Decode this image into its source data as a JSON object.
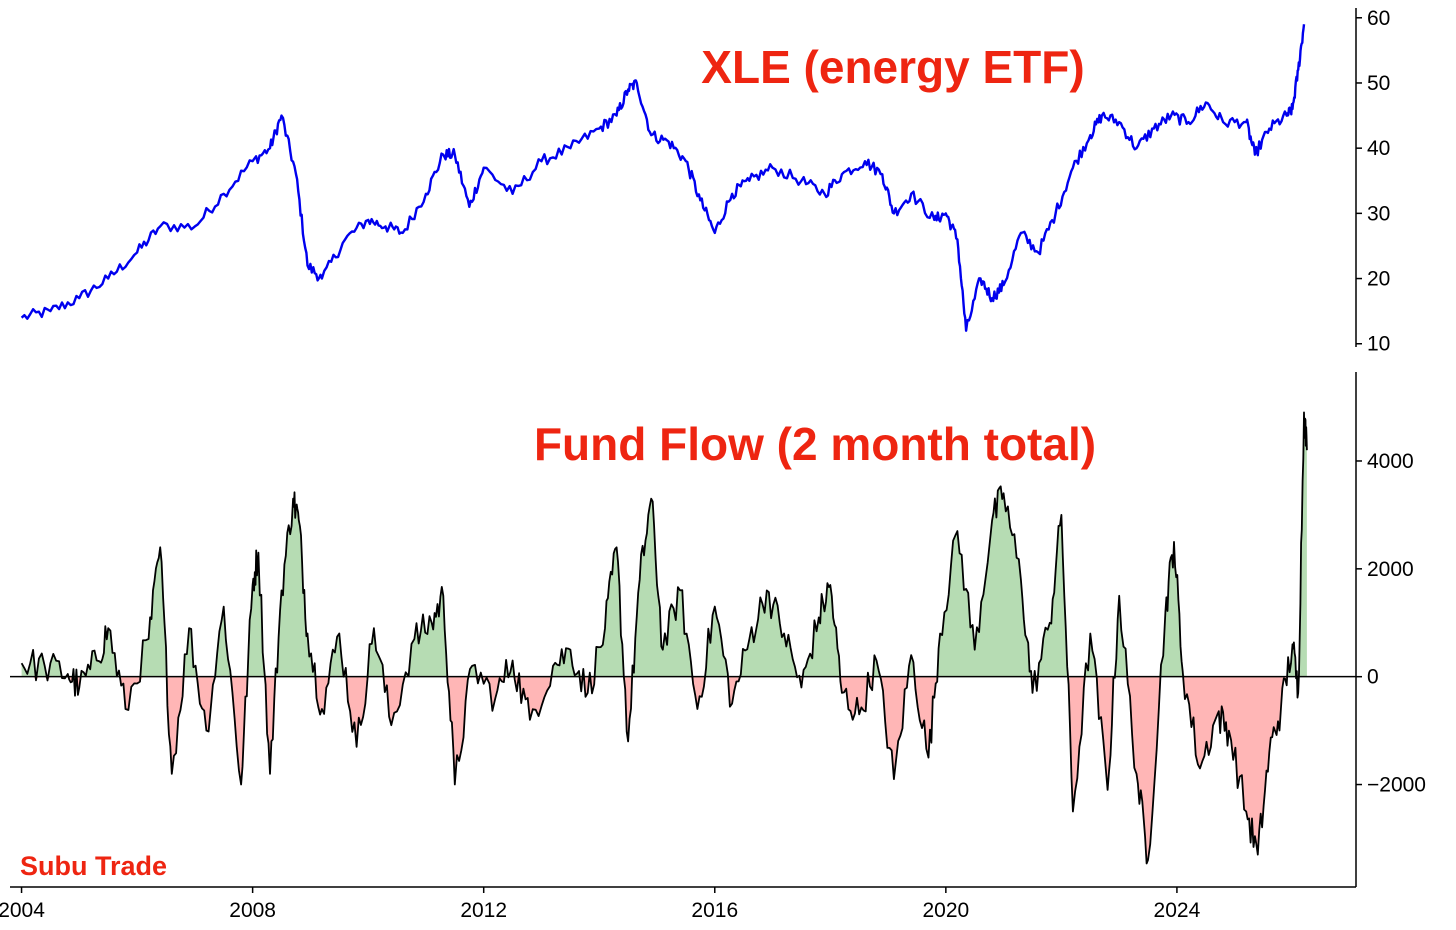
{
  "watermark": "Subu Trade",
  "colors": {
    "title": "#ee2511",
    "price_line": "#0000ee",
    "flow_line": "#000000",
    "positive_fill": "#b6dcb3",
    "negative_fill": "#ffb6b6"
  },
  "chart_data": [
    {
      "type": "line",
      "title": "XLE (energy ETF)",
      "xlabel": "",
      "ylabel": "",
      "x_axis": "shared time axis (years)",
      "xlim": [
        2003.8,
        2027.1
      ],
      "ylim": [
        9.5,
        61.5
      ],
      "yticks": [
        10,
        20,
        30,
        40,
        50,
        60
      ],
      "ytick_labels": [
        "10",
        "20",
        "30",
        "40",
        "50",
        "60"
      ],
      "y_axis_side": "right",
      "grid": false,
      "series": [
        {
          "color": "#0000ee",
          "points": [
            [
              2004.0,
              14
            ],
            [
              2004.5,
              15
            ],
            [
              2005.0,
              17
            ],
            [
              2005.5,
              20
            ],
            [
              2006.0,
              24
            ],
            [
              2006.4,
              28
            ],
            [
              2007.0,
              28
            ],
            [
              2007.5,
              33
            ],
            [
              2008.0,
              38
            ],
            [
              2008.3,
              40
            ],
            [
              2008.5,
              45
            ],
            [
              2008.75,
              36
            ],
            [
              2008.95,
              22
            ],
            [
              2009.2,
              20
            ],
            [
              2009.6,
              26
            ],
            [
              2010.0,
              29
            ],
            [
              2010.3,
              28
            ],
            [
              2010.6,
              27
            ],
            [
              2011.0,
              33
            ],
            [
              2011.3,
              39
            ],
            [
              2011.5,
              39
            ],
            [
              2011.75,
              31
            ],
            [
              2012.0,
              37
            ],
            [
              2012.5,
              33
            ],
            [
              2013.0,
              38
            ],
            [
              2013.5,
              40
            ],
            [
              2014.0,
              43
            ],
            [
              2014.3,
              45
            ],
            [
              2014.5,
              49
            ],
            [
              2014.65,
              50
            ],
            [
              2014.9,
              42
            ],
            [
              2015.2,
              41
            ],
            [
              2015.5,
              38
            ],
            [
              2015.75,
              32
            ],
            [
              2016.0,
              27
            ],
            [
              2016.3,
              33
            ],
            [
              2016.6,
              35
            ],
            [
              2017.0,
              37
            ],
            [
              2017.5,
              35
            ],
            [
              2017.9,
              33
            ],
            [
              2018.2,
              36
            ],
            [
              2018.6,
              38
            ],
            [
              2018.9,
              36
            ],
            [
              2019.1,
              30
            ],
            [
              2019.4,
              33
            ],
            [
              2019.8,
              29
            ],
            [
              2020.0,
              30
            ],
            [
              2020.2,
              26
            ],
            [
              2020.35,
              12
            ],
            [
              2020.6,
              20
            ],
            [
              2020.8,
              17
            ],
            [
              2021.0,
              19
            ],
            [
              2021.3,
              27
            ],
            [
              2021.6,
              24
            ],
            [
              2021.9,
              30
            ],
            [
              2022.2,
              37
            ],
            [
              2022.5,
              42
            ],
            [
              2022.7,
              45
            ],
            [
              2023.0,
              44
            ],
            [
              2023.3,
              40
            ],
            [
              2023.6,
              43
            ],
            [
              2023.9,
              45
            ],
            [
              2024.2,
              44
            ],
            [
              2024.5,
              47
            ],
            [
              2024.8,
              44
            ],
            [
              2025.2,
              44
            ],
            [
              2025.35,
              39
            ],
            [
              2025.6,
              43
            ],
            [
              2025.9,
              45
            ],
            [
              2026.0,
              46
            ],
            [
              2026.1,
              52
            ],
            [
              2026.2,
              59
            ]
          ]
        }
      ]
    },
    {
      "type": "area",
      "title": "Fund Flow (2 month total)",
      "xlabel": "",
      "ylabel": "",
      "xlim": [
        2003.8,
        2027.1
      ],
      "ylim": [
        -3900,
        5650
      ],
      "xticks": [
        2004,
        2008,
        2012,
        2016,
        2020,
        2024
      ],
      "xtick_labels": [
        "2004",
        "2008",
        "2012",
        "2016",
        "2020",
        "2024"
      ],
      "yticks": [
        -2000,
        0,
        2000,
        4000
      ],
      "ytick_labels": [
        "−2000",
        "0",
        "2000",
        "4000"
      ],
      "y_axis_side": "right",
      "grid": false,
      "baseline": 0,
      "fill_positive": "#b6dcb3",
      "fill_negative": "#ffb6b6",
      "series": [
        {
          "color": "#000000",
          "points": [
            [
              2004.0,
              250
            ],
            [
              2004.4,
              200
            ],
            [
              2004.8,
              50
            ],
            [
              2005.0,
              -200
            ],
            [
              2005.3,
              300
            ],
            [
              2005.5,
              900
            ],
            [
              2005.8,
              -600
            ],
            [
              2006.2,
              700
            ],
            [
              2006.4,
              2400
            ],
            [
              2006.6,
              -1800
            ],
            [
              2006.9,
              900
            ],
            [
              2007.2,
              -1000
            ],
            [
              2007.5,
              1300
            ],
            [
              2007.8,
              -2000
            ],
            [
              2008.0,
              1700
            ],
            [
              2008.1,
              2300
            ],
            [
              2008.3,
              -1800
            ],
            [
              2008.5,
              1600
            ],
            [
              2008.7,
              3300
            ],
            [
              2008.8,
              2900
            ],
            [
              2008.95,
              800
            ],
            [
              2009.2,
              -600
            ],
            [
              2009.5,
              800
            ],
            [
              2009.8,
              -1300
            ],
            [
              2010.1,
              900
            ],
            [
              2010.4,
              -900
            ],
            [
              2010.8,
              700
            ],
            [
              2011.1,
              1000
            ],
            [
              2011.3,
              1500
            ],
            [
              2011.5,
              -2000
            ],
            [
              2011.8,
              200
            ],
            [
              2012.2,
              -400
            ],
            [
              2012.5,
              300
            ],
            [
              2012.8,
              -800
            ],
            [
              2013.2,
              200
            ],
            [
              2013.5,
              500
            ],
            [
              2013.8,
              -300
            ],
            [
              2014.1,
              900
            ],
            [
              2014.3,
              2400
            ],
            [
              2014.5,
              -1200
            ],
            [
              2014.7,
              1800
            ],
            [
              2014.9,
              3300
            ],
            [
              2015.1,
              500
            ],
            [
              2015.4,
              1600
            ],
            [
              2015.7,
              -600
            ],
            [
              2016.0,
              1300
            ],
            [
              2016.3,
              -500
            ],
            [
              2016.6,
              700
            ],
            [
              2016.9,
              1600
            ],
            [
              2017.2,
              800
            ],
            [
              2017.5,
              -200
            ],
            [
              2017.8,
              1100
            ],
            [
              2018.0,
              1700
            ],
            [
              2018.2,
              -300
            ],
            [
              2018.5,
              -700
            ],
            [
              2018.8,
              300
            ],
            [
              2019.1,
              -1900
            ],
            [
              2019.4,
              400
            ],
            [
              2019.7,
              -1500
            ],
            [
              2019.9,
              800
            ],
            [
              2020.2,
              2700
            ],
            [
              2020.5,
              500
            ],
            [
              2020.8,
              2900
            ],
            [
              2021.0,
              3400
            ],
            [
              2021.3,
              1800
            ],
            [
              2021.5,
              -300
            ],
            [
              2021.8,
              1000
            ],
            [
              2022.0,
              3000
            ],
            [
              2022.2,
              -2500
            ],
            [
              2022.5,
              800
            ],
            [
              2022.8,
              -2100
            ],
            [
              2023.0,
              1500
            ],
            [
              2023.3,
              -1800
            ],
            [
              2023.5,
              -3400
            ],
            [
              2023.8,
              1200
            ],
            [
              2023.95,
              2500
            ],
            [
              2024.1,
              100
            ],
            [
              2024.4,
              -1700
            ],
            [
              2024.7,
              -700
            ],
            [
              2024.9,
              -1000
            ],
            [
              2025.2,
              -2500
            ],
            [
              2025.4,
              -3300
            ],
            [
              2025.6,
              -1400
            ],
            [
              2025.8,
              -600
            ],
            [
              2026.0,
              600
            ],
            [
              2026.1,
              -300
            ],
            [
              2026.2,
              4900
            ],
            [
              2026.25,
              4200
            ]
          ]
        }
      ]
    }
  ]
}
